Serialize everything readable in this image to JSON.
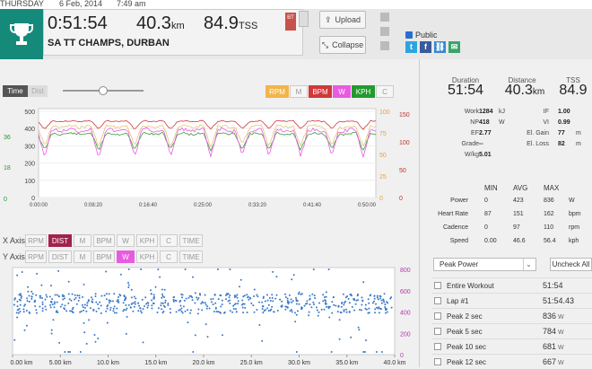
{
  "topbar": {
    "day": "THURSDAY",
    "date": "6 Feb, 2014",
    "time": "7:49 am"
  },
  "summary": {
    "duration": "0:51:54",
    "distance": "40.3",
    "distance_unit": "km",
    "tss": "84.9",
    "tss_unit": "TSS",
    "name": "SA TT CHAMPS, DURBAN",
    "badge": "BT"
  },
  "actions": {
    "upload": "Upload",
    "collapse": "Collapse",
    "public": "Public"
  },
  "social": [
    {
      "icon": "twitter-icon",
      "glyph": "t",
      "color": "#2fa3e0"
    },
    {
      "icon": "facebook-icon",
      "glyph": "f",
      "color": "#3b5b98"
    },
    {
      "icon": "link-icon",
      "glyph": "⛓",
      "color": "#3a88cf"
    },
    {
      "icon": "email-icon",
      "glyph": "✉",
      "color": "#3aa56a"
    }
  ],
  "chart_top": {
    "toggle": {
      "time": "Time",
      "dist": "Dist"
    },
    "series_buttons": [
      {
        "label": "RPM",
        "bg": "#f2b54a",
        "fg": "#fff"
      },
      {
        "label": "M",
        "bg": "#f5f5f5",
        "fg": "#999"
      },
      {
        "label": "BPM",
        "bg": "#d0383a",
        "fg": "#fff"
      },
      {
        "label": "W",
        "bg": "#e85be0",
        "fg": "#fff"
      },
      {
        "label": "KPH",
        "bg": "#249a2e",
        "fg": "#fff"
      },
      {
        "label": "C",
        "bg": "#f5f5f5",
        "fg": "#999"
      }
    ],
    "left_axis_green": [
      "36",
      "18",
      "0"
    ],
    "left_axis_black": [
      "500",
      "400",
      "300",
      "200",
      "100",
      "0"
    ],
    "right_axis_orange": [
      "100",
      "75",
      "50",
      "25",
      "0"
    ],
    "right_axis_red": [
      "150",
      "100",
      "50",
      "0"
    ],
    "x_ticks": [
      "0:00:00",
      "0:08:20",
      "0:16:40",
      "0:25:00",
      "0:33:20",
      "0:41:40",
      "0:50:00"
    ]
  },
  "axis_controls": {
    "x_label": "X Axis",
    "y_label": "Y Axis",
    "x_options": [
      "RPM",
      "DIST",
      "M",
      "BPM",
      "W",
      "KPH",
      "C",
      "TIME"
    ],
    "x_selected": "DIST",
    "y_options": [
      "RPM",
      "DIST",
      "M",
      "BPM",
      "W",
      "KPH",
      "C",
      "TIME"
    ],
    "y_selected": "W"
  },
  "scatter": {
    "y_ticks": [
      "800",
      "600",
      "400",
      "200",
      "0"
    ],
    "x_ticks": [
      "0.00 km",
      "5.00 km",
      "10.0 km",
      "15.0 km",
      "20.0 km",
      "25.0 km",
      "30.0 km",
      "35.0 km",
      "40.0 km"
    ]
  },
  "stats": {
    "duration": {
      "label": "Duration",
      "value": "51:54"
    },
    "distance": {
      "label": "Distance",
      "value": "40.3",
      "unit": "km"
    },
    "tss": {
      "label": "TSS",
      "value": "84.9"
    },
    "metrics": [
      {
        "l": "Work",
        "v": "1284",
        "u": "kJ",
        "l2": "IF",
        "v2": "1.00",
        "u2": ""
      },
      {
        "l": "NP",
        "v": "418",
        "u": "W",
        "l2": "VI",
        "v2": "0.99",
        "u2": ""
      },
      {
        "l": "EF",
        "v": "2.77",
        "u": "",
        "l2": "El. Gain",
        "v2": "77",
        "u2": "m"
      },
      {
        "l": "Grade",
        "v": "--",
        "u": "",
        "l2": "El. Loss",
        "v2": "82",
        "u2": "m"
      },
      {
        "l": "W/kg",
        "v": "5.01",
        "u": "",
        "l2": "",
        "v2": "",
        "u2": ""
      }
    ],
    "table_head": [
      "MIN",
      "AVG",
      "MAX"
    ],
    "table": [
      {
        "n": "Power",
        "min": "0",
        "avg": "423",
        "max": "836",
        "u": "W"
      },
      {
        "n": "Heart Rate",
        "min": "87",
        "avg": "151",
        "max": "162",
        "u": "bpm"
      },
      {
        "n": "Cadence",
        "min": "0",
        "avg": "97",
        "max": "110",
        "u": "rpm"
      },
      {
        "n": "Speed",
        "min": "0.00",
        "avg": "46.6",
        "max": "56.4",
        "u": "kph"
      }
    ]
  },
  "peaks": {
    "selector": "Peak Power",
    "uncheck": "Uncheck All",
    "rows": [
      {
        "n": "Entire Workout",
        "v": "51:54",
        "u": ""
      },
      {
        "n": "Lap #1",
        "v": "51:54.43",
        "u": ""
      },
      {
        "n": "Peak 2 sec",
        "v": "836",
        "u": "W"
      },
      {
        "n": "Peak 5 sec",
        "v": "784",
        "u": "W"
      },
      {
        "n": "Peak 10 sec",
        "v": "681",
        "u": "W"
      },
      {
        "n": "Peak 12 sec",
        "v": "667",
        "u": "W"
      }
    ]
  }
}
